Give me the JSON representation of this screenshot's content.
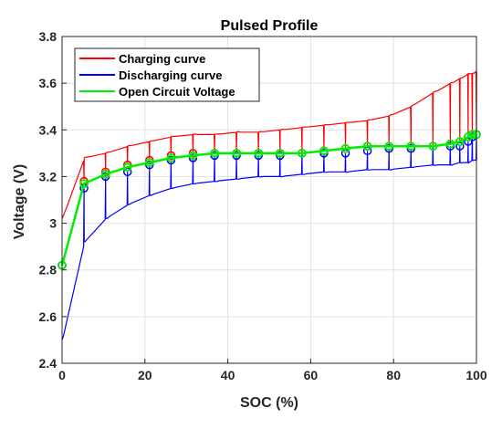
{
  "chart_data": {
    "type": "line",
    "title": "Pulsed Profile",
    "xlabel": "SOC (%)",
    "ylabel": "Voltage (V)",
    "xlim": [
      0,
      100
    ],
    "ylim": [
      2.4,
      3.8
    ],
    "x_ticks": [
      "0",
      "20",
      "40",
      "60",
      "80",
      "100"
    ],
    "y_ticks": [
      "2.4",
      "2.6",
      "2.8",
      "3",
      "3.2",
      "3.4",
      "3.6",
      "3.8"
    ],
    "grid": true,
    "legend_position": "top-left",
    "series": [
      {
        "name": "Charging curve",
        "color": "#ff0000",
        "marker": "circle",
        "x": [
          0,
          5.3,
          10.5,
          15.8,
          21.1,
          26.3,
          31.6,
          36.8,
          42.1,
          47.4,
          52.6,
          57.9,
          63.2,
          68.4,
          73.7,
          78.9,
          84.2,
          89.5,
          93.7,
          96.0,
          98.0,
          99.0,
          100
        ],
        "y": [
          2.82,
          3.18,
          3.22,
          3.25,
          3.27,
          3.29,
          3.3,
          3.3,
          3.3,
          3.3,
          3.3,
          3.3,
          3.31,
          3.32,
          3.33,
          3.33,
          3.33,
          3.33,
          3.34,
          3.35,
          3.37,
          3.38,
          3.38
        ],
        "pulse_peaks": [
          3.02,
          3.28,
          3.3,
          3.33,
          3.35,
          3.37,
          3.38,
          3.38,
          3.39,
          3.39,
          3.4,
          3.41,
          3.42,
          3.43,
          3.44,
          3.46,
          3.5,
          3.56,
          3.6,
          3.62,
          3.64,
          3.64,
          3.65
        ]
      },
      {
        "name": "Discharging curve",
        "color": "#0000ff",
        "marker": "circle",
        "x": [
          0,
          5.3,
          10.5,
          15.8,
          21.1,
          26.3,
          31.6,
          36.8,
          42.1,
          47.4,
          52.6,
          57.9,
          63.2,
          68.4,
          73.7,
          78.9,
          84.2,
          89.5,
          93.7,
          96.0,
          98.0,
          99.0,
          100
        ],
        "y": [
          2.82,
          3.15,
          3.2,
          3.22,
          3.25,
          3.27,
          3.28,
          3.29,
          3.29,
          3.29,
          3.29,
          3.3,
          3.3,
          3.3,
          3.31,
          3.32,
          3.32,
          3.33,
          3.33,
          3.33,
          3.35,
          3.37,
          3.38
        ],
        "pulse_valleys": [
          2.5,
          2.92,
          3.02,
          3.08,
          3.12,
          3.15,
          3.17,
          3.18,
          3.19,
          3.2,
          3.2,
          3.21,
          3.22,
          3.22,
          3.23,
          3.23,
          3.24,
          3.25,
          3.25,
          3.26,
          3.26,
          3.27,
          3.27
        ]
      },
      {
        "name": "Open Circuit Voltage",
        "color": "#00ee00",
        "marker": "circle",
        "x": [
          0,
          5.3,
          10.5,
          15.8,
          21.1,
          26.3,
          31.6,
          36.8,
          42.1,
          47.4,
          52.6,
          57.9,
          63.2,
          68.4,
          73.7,
          78.9,
          84.2,
          89.5,
          93.7,
          96.0,
          98.0,
          99.0,
          100
        ],
        "y": [
          2.82,
          3.17,
          3.21,
          3.24,
          3.26,
          3.28,
          3.29,
          3.3,
          3.3,
          3.3,
          3.3,
          3.3,
          3.31,
          3.32,
          3.33,
          3.33,
          3.33,
          3.33,
          3.34,
          3.35,
          3.37,
          3.38,
          3.38
        ]
      }
    ]
  }
}
